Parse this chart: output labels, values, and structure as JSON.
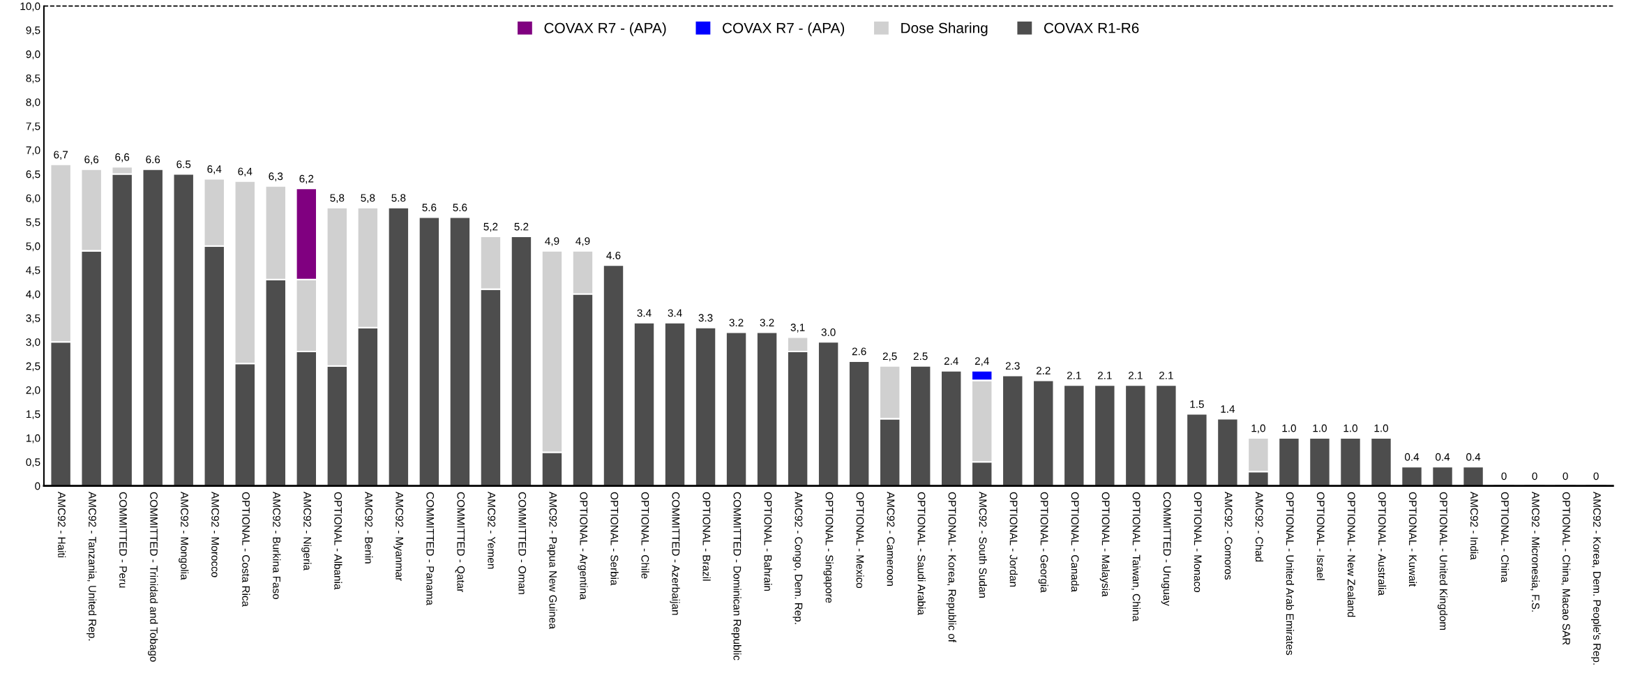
{
  "chart_data": {
    "type": "bar",
    "stacked": true,
    "legend": "top",
    "grid": false,
    "categories": [
      "AMC92 - Haiti",
      "AMC92 - Tanzania, United Rep.",
      "COMMITTED - Peru",
      "COMMITTED - Trinidad and Tobago",
      "AMC92 - Mongolia",
      "AMC92 - Morocco",
      "OPTIONAL - Costa Rica",
      "AMC92 - Burkina Faso",
      "AMC92 - Nigeria",
      "OPTIONAL - Albania",
      "AMC92 - Benin",
      "AMC92 - Myanmar",
      "COMMITTED - Panama",
      "COMMITTED - Qatar",
      "AMC92 - Yemen",
      "COMMITTED - Oman",
      "AMC92 - Papua New Guinea",
      "OPTIONAL - Argentina",
      "OPTIONAL - Serbia",
      "OPTIONAL - Chile",
      "COMMITTED - Azerbaijan",
      "OPTIONAL - Brazil",
      "COMMITTED - Dominican Republic",
      "OPTIONAL - Bahrain",
      "AMC92 - Congo, Dem. Rep.",
      "OPTIONAL - Singapore",
      "OPTIONAL - Mexico",
      "AMC92 - Cameroon",
      "OPTIONAL - Saudi Arabia",
      "OPTIONAL - Korea, Republic of",
      "AMC92 - South Sudan",
      "OPTIONAL - Jordan",
      "OPTIONAL - Georgia",
      "OPTIONAL - Canada",
      "OPTIONAL - Malaysia",
      "OPTIONAL - Taiwan, China",
      "COMMITTED - Uruguay",
      "OPTIONAL - Monaco",
      "AMC92 - Comoros",
      "AMC92 - Chad",
      "OPTIONAL - United Arab Emirates",
      "OPTIONAL - Israel",
      "OPTIONAL - New Zealand",
      "OPTIONAL - Australia",
      "OPTIONAL - Kuwait",
      "OPTIONAL - United Kingdom",
      "AMC92 - India",
      "OPTIONAL - China",
      "AMC92 - Micronesia, F.S.",
      "OPTIONAL - China, Macao SAR",
      "AMC92 - Korea, Dem. People's Rep."
    ],
    "series": [
      {
        "name": "COVAX R1-R6",
        "color": "#4d4d4d",
        "values": [
          3.0,
          4.9,
          6.5,
          6.6,
          6.5,
          5.0,
          2.55,
          4.3,
          2.8,
          2.5,
          3.3,
          5.8,
          5.6,
          5.6,
          4.1,
          5.2,
          0.7,
          4.0,
          4.6,
          3.4,
          3.4,
          3.3,
          3.2,
          3.2,
          2.8,
          3.0,
          2.6,
          1.4,
          2.5,
          2.4,
          0.5,
          2.3,
          2.2,
          2.1,
          2.1,
          2.1,
          2.1,
          1.5,
          1.4,
          0.3,
          1.0,
          1.0,
          1.0,
          1.0,
          0.4,
          0.4,
          0.4,
          0,
          0,
          0,
          0
        ]
      },
      {
        "name": "Dose Sharing",
        "color": "#d0d0d0",
        "values": [
          3.7,
          1.7,
          0.15,
          null,
          null,
          1.4,
          3.8,
          1.95,
          1.5,
          3.3,
          2.5,
          null,
          null,
          null,
          1.1,
          null,
          4.2,
          0.9,
          null,
          null,
          null,
          null,
          null,
          null,
          0.3,
          null,
          null,
          1.1,
          null,
          null,
          1.7,
          null,
          null,
          null,
          null,
          null,
          null,
          null,
          null,
          0.7,
          null,
          null,
          null,
          null,
          null,
          null,
          null,
          null,
          null,
          null,
          null
        ]
      },
      {
        "name": "COVAX R7 - (APA)",
        "color": "#0000ff",
        "values": [
          null,
          null,
          null,
          null,
          null,
          null,
          null,
          null,
          null,
          null,
          null,
          null,
          null,
          null,
          null,
          null,
          null,
          null,
          null,
          null,
          null,
          null,
          null,
          null,
          null,
          null,
          null,
          null,
          null,
          null,
          0.2,
          null,
          null,
          null,
          null,
          null,
          null,
          null,
          null,
          null,
          null,
          null,
          null,
          null,
          null,
          null,
          null,
          null,
          null,
          null,
          null
        ]
      },
      {
        "name": "COVAX R7 - (APA)",
        "color": "#800080",
        "values": [
          null,
          null,
          null,
          null,
          null,
          null,
          null,
          null,
          1.9,
          null,
          null,
          null,
          null,
          null,
          null,
          null,
          null,
          null,
          null,
          null,
          null,
          null,
          null,
          null,
          null,
          null,
          null,
          null,
          null,
          null,
          null,
          null,
          null,
          null,
          null,
          null,
          null,
          null,
          null,
          null,
          null,
          null,
          null,
          null,
          null,
          null,
          null,
          null,
          null,
          null,
          null
        ]
      }
    ],
    "totals": [
      "6,7",
      "6,6",
      "6,6",
      "6.6",
      "6.5",
      "6,4",
      "6,4",
      "6,3",
      "6,2",
      "5,8",
      "5,8",
      "5.8",
      "5.6",
      "5.6",
      "5,2",
      "5.2",
      "4,9",
      "4,9",
      "4.6",
      "3.4",
      "3.4",
      "3.3",
      "3.2",
      "3.2",
      "3,1",
      "3.0",
      "2.6",
      "2,5",
      "2.5",
      "2.4",
      "2,4",
      "2.3",
      "2.2",
      "2.1",
      "2.1",
      "2.1",
      "2.1",
      "1.5",
      "1.4",
      "1,0",
      "1.0",
      "1.0",
      "1.0",
      "1.0",
      "0.4",
      "0.4",
      "0.4",
      "0",
      "0",
      "0",
      "0"
    ],
    "ylim": [
      0,
      10
    ],
    "yticks": [
      0,
      {
        "value": 0.5,
        "label": "0,5"
      },
      {
        "value": 1,
        "label": "1,0"
      },
      {
        "value": 1.5,
        "label": "1,5"
      },
      {
        "value": 2,
        "label": "2,0"
      },
      {
        "value": 2.5,
        "label": "2,5"
      },
      {
        "value": 3,
        "label": "3,0"
      },
      {
        "value": 3.5,
        "label": "3,5"
      },
      {
        "value": 4,
        "label": "4,0"
      },
      {
        "value": 4.5,
        "label": "4,5"
      },
      {
        "value": 5,
        "label": "5,0"
      },
      {
        "value": 5.5,
        "label": "5,5"
      },
      {
        "value": 6,
        "label": "6,0"
      },
      {
        "value": 6.5,
        "label": "6,5"
      },
      {
        "value": 7,
        "label": "7,0"
      },
      {
        "value": 7.5,
        "label": "7,5"
      },
      {
        "value": 8,
        "label": "8,0"
      },
      {
        "value": 8.5,
        "label": "8,5"
      },
      {
        "value": 9,
        "label": "9,0"
      },
      {
        "value": 9.5,
        "label": "9,5"
      },
      {
        "value": 10,
        "label": "10,0"
      }
    ],
    "ref_lines": [
      {
        "axis": "y",
        "value": 10,
        "color": "#000000",
        "line_style": "dashed"
      }
    ]
  }
}
